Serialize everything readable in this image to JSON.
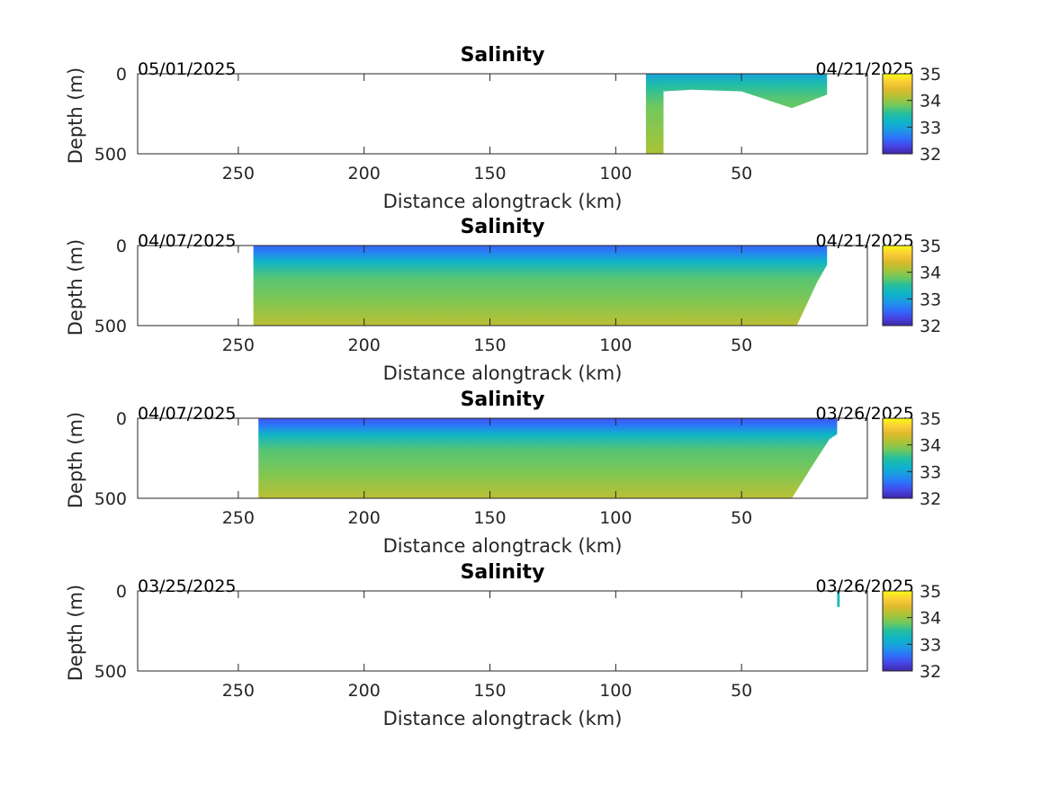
{
  "chart_data": [
    {
      "type": "heatmap",
      "title": "Salinity",
      "xlabel": "Distance alongtrack (km)",
      "ylabel": "Depth (m)",
      "xlim": [
        0,
        290
      ],
      "x_reversed": true,
      "ylim": [
        0,
        500
      ],
      "y_reversed": true,
      "xticks": [
        "250",
        "200",
        "150",
        "100",
        "50"
      ],
      "yticks": [
        "0",
        "500"
      ],
      "colorbar": {
        "min": 32,
        "max": 35,
        "ticks": [
          "35",
          "34",
          "33",
          "32"
        ]
      },
      "date_left": "05/01/2025",
      "date_right": "04/21/2025",
      "sections": [
        {
          "x_start": 88,
          "x_end": 81,
          "top": 0,
          "bottom": 500,
          "salinity": [
            [
              0,
              33.0
            ],
            [
              80,
              33.5
            ],
            [
              200,
              33.8
            ],
            [
              500,
              34.1
            ]
          ]
        },
        {
          "x_start": 81,
          "x_end": 16,
          "top": 0,
          "bottom_profile": [
            [
              81,
              110
            ],
            [
              70,
              100
            ],
            [
              50,
              110
            ],
            [
              30,
              215
            ],
            [
              16,
              130
            ]
          ],
          "salinity": [
            [
              0,
              33.0
            ],
            [
              60,
              33.4
            ],
            [
              150,
              33.7
            ],
            [
              215,
              33.8
            ]
          ]
        }
      ]
    },
    {
      "type": "heatmap",
      "title": "Salinity",
      "xlabel": "Distance alongtrack (km)",
      "ylabel": "Depth (m)",
      "xlim": [
        0,
        290
      ],
      "x_reversed": true,
      "ylim": [
        0,
        500
      ],
      "y_reversed": true,
      "xticks": [
        "250",
        "200",
        "150",
        "100",
        "50"
      ],
      "yticks": [
        "0",
        "500"
      ],
      "colorbar": {
        "min": 32,
        "max": 35,
        "ticks": [
          "35",
          "34",
          "33",
          "32"
        ]
      },
      "date_left": "04/07/2025",
      "date_right": "04/21/2025",
      "sections": [
        {
          "x_start": 244,
          "x_end": 16,
          "top": 0,
          "bottom_profile": [
            [
              244,
              500
            ],
            [
              100,
              500
            ],
            [
              28,
              500
            ],
            [
              20,
              230
            ],
            [
              16,
              120
            ]
          ],
          "salinity": [
            [
              0,
              32.5
            ],
            [
              40,
              32.7
            ],
            [
              100,
              33.2
            ],
            [
              200,
              33.7
            ],
            [
              350,
              33.9
            ],
            [
              500,
              34.2
            ]
          ]
        }
      ]
    },
    {
      "type": "heatmap",
      "title": "Salinity",
      "xlabel": "Distance alongtrack (km)",
      "ylabel": "Depth (m)",
      "xlim": [
        0,
        290
      ],
      "x_reversed": true,
      "ylim": [
        0,
        500
      ],
      "y_reversed": true,
      "xticks": [
        "250",
        "200",
        "150",
        "100",
        "50"
      ],
      "yticks": [
        "0",
        "500"
      ],
      "colorbar": {
        "min": 32,
        "max": 35,
        "ticks": [
          "35",
          "34",
          "33",
          "32"
        ]
      },
      "date_left": "04/07/2025",
      "date_right": "03/26/2025",
      "sections": [
        {
          "x_start": 242,
          "x_end": 12,
          "top": 0,
          "bottom_profile": [
            [
              242,
              500
            ],
            [
              100,
              500
            ],
            [
              30,
              500
            ],
            [
              22,
              300
            ],
            [
              15,
              130
            ],
            [
              12,
              100
            ]
          ],
          "salinity": [
            [
              0,
              32.4
            ],
            [
              40,
              32.6
            ],
            [
              100,
              33.2
            ],
            [
              200,
              33.7
            ],
            [
              350,
              33.9
            ],
            [
              500,
              34.2
            ]
          ]
        }
      ]
    },
    {
      "type": "heatmap",
      "title": "Salinity",
      "xlabel": "Distance alongtrack (km)",
      "ylabel": "Depth (m)",
      "xlim": [
        0,
        290
      ],
      "x_reversed": true,
      "ylim": [
        0,
        500
      ],
      "y_reversed": true,
      "xticks": [
        "250",
        "200",
        "150",
        "100",
        "50"
      ],
      "yticks": [
        "0",
        "500"
      ],
      "colorbar": {
        "min": 32,
        "max": 35,
        "ticks": [
          "35",
          "34",
          "33",
          "32"
        ]
      },
      "date_left": "03/25/2025",
      "date_right": "03/26/2025",
      "sections": [
        {
          "x_start": 12,
          "x_end": 11,
          "top": 0,
          "bottom": 100,
          "salinity": [
            [
              0,
              33.2
            ],
            [
              100,
              33.4
            ]
          ]
        }
      ]
    }
  ]
}
